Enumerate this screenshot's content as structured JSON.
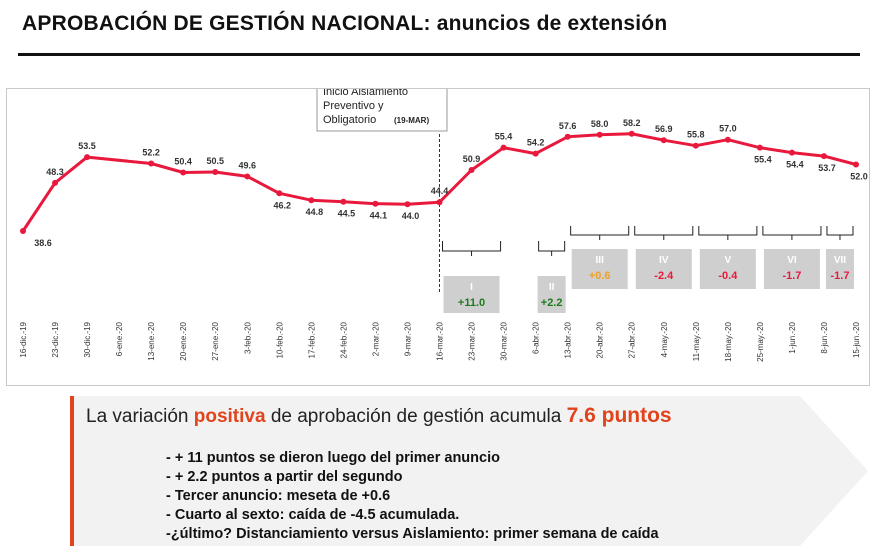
{
  "title": {
    "main": "APROBACIÓN DE GESTIÓN NACIONAL:",
    "sub": "anuncios de extensión"
  },
  "chart_data": {
    "type": "line",
    "title": "APROBACIÓN DE GESTIÓN NACIONAL: anuncios de extensión",
    "categories": [
      "16-dic.-19",
      "23-dic.-19",
      "30-dic.-19",
      "6-ene.-20",
      "13-ene.-20",
      "20-ene.-20",
      "27-ene.-20",
      "3-feb.-20",
      "10-feb.-20",
      "17-feb.-20",
      "24-feb.-20",
      "2-mar.-20",
      "9-mar.-20",
      "16-mar.-20",
      "23-mar.-20",
      "30-mar.-20",
      "6-abr.-20",
      "13-abr.-20",
      "20-abr.-20",
      "27-abr.-20",
      "4-may.-20",
      "11-may.-20",
      "18-may.-20",
      "25-may.-20",
      "1-jun.-20",
      "8-jun.-20",
      "15-jun.-20"
    ],
    "series": [
      {
        "name": "Aprobación de gestión",
        "color": "#e8193c",
        "values": [
          38.6,
          48.3,
          53.5,
          null,
          52.2,
          50.4,
          50.5,
          49.6,
          46.2,
          44.8,
          44.5,
          44.1,
          44.0,
          44.4,
          50.9,
          55.4,
          54.2,
          57.6,
          58.0,
          58.2,
          56.9,
          55.8,
          57.0,
          55.4,
          54.4,
          53.7,
          52.0
        ]
      }
    ],
    "ylim": [
      30,
      70
    ],
    "annotation": {
      "line1": "Inicio Aislamiento",
      "line2": "Preventivo y",
      "line3": "Obligatorio",
      "date": "(19-MAR)",
      "at": "16-mar.-20"
    },
    "phases": [
      {
        "label": "I",
        "change": "+11.0",
        "color": "#1e7a1e",
        "from": "16-mar.-20",
        "to": "30-mar.-20"
      },
      {
        "label": "II",
        "change": "+2.2",
        "color": "#1e7a1e",
        "from": "6-abr.-20",
        "to": "13-abr.-20"
      },
      {
        "label": "III",
        "change": "+0.6",
        "color": "#f0a020",
        "from": "13-abr.-20",
        "to": "27-abr.-20"
      },
      {
        "label": "IV",
        "change": "-2.4",
        "color": "#e8193c",
        "from": "27-abr.-20",
        "to": "11-may.-20"
      },
      {
        "label": "V",
        "change": "-0.4",
        "color": "#e8193c",
        "from": "11-may.-20",
        "to": "25-may.-20"
      },
      {
        "label": "VI",
        "change": "-1.7",
        "color": "#e8193c",
        "from": "25-may.-20",
        "to": "8-jun.-20"
      },
      {
        "label": "VII",
        "change": "-1.7",
        "color": "#e8193c",
        "from": "8-jun.-20",
        "to": "15-jun.-20"
      }
    ]
  },
  "summary": {
    "prefix": "La variación ",
    "positive": "positiva",
    "middle": " de aprobación de gestión acumula ",
    "points": "7.6 puntos",
    "bullets": [
      "- + 11 puntos se dieron luego del primer anuncio",
      "- + 2.2 puntos a partir del segundo",
      "- Tercer anuncio: meseta de +0.6",
      "- Cuarto al sexto: caída de -4.5 acumulada.",
      "-¿último? Distanciamiento versus Aislamiento: primer semana de caída"
    ]
  },
  "colors": {
    "line": "#e8193c",
    "accent": "#e0441d",
    "phase_box": "#cfcfcf",
    "summary_bg": "#f2f2f2"
  }
}
